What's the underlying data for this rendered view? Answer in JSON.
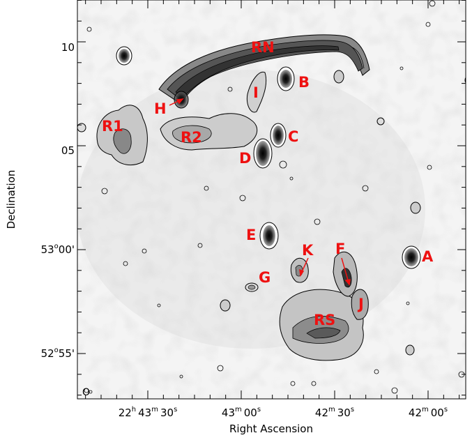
{
  "axes": {
    "xlabel": "Right Ascension",
    "ylabel": "Declination",
    "xticks": [
      {
        "h": "22",
        "hu": "h",
        "m": "43",
        "mu": "m",
        "s": "30",
        "su": "s"
      },
      {
        "m": "43",
        "mu": "m",
        "s": "00",
        "su": "s"
      },
      {
        "m": "42",
        "mu": "m",
        "s": "30",
        "su": "s"
      },
      {
        "m": "42",
        "mu": "m",
        "s": "00",
        "su": "s"
      }
    ],
    "yticks": [
      {
        "deg": "",
        "du": "",
        "min": "10"
      },
      {
        "deg": "",
        "du": "",
        "min": "05"
      },
      {
        "deg": "53",
        "du": "o",
        "min": "00'"
      },
      {
        "deg": "52",
        "du": "o",
        "min": "55'"
      }
    ]
  },
  "beam": {
    "label": "O"
  },
  "sources": [
    {
      "label": "RN"
    },
    {
      "label": "B"
    },
    {
      "label": "I"
    },
    {
      "label": "H"
    },
    {
      "label": "R1"
    },
    {
      "label": "R2"
    },
    {
      "label": "C"
    },
    {
      "label": "D"
    },
    {
      "label": "E"
    },
    {
      "label": "K"
    },
    {
      "label": "F"
    },
    {
      "label": "A"
    },
    {
      "label": "G"
    },
    {
      "label": "J"
    },
    {
      "label": "RS"
    }
  ],
  "colors": {
    "labels": "#ee1111",
    "contour": "#000000",
    "greyscale": "#808080"
  }
}
